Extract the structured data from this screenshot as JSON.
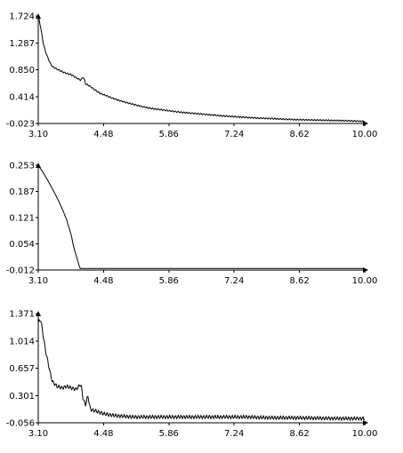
{
  "chart_data": [
    {
      "type": "line",
      "xlim": [
        3.1,
        10.0
      ],
      "ylim": [
        -0.023,
        1.724
      ],
      "x_ticks": [
        "3.10",
        "4.48",
        "5.86",
        "7.24",
        "8.62",
        "10.00"
      ],
      "y_ticks": [
        "1.724",
        "1.287",
        "0.850",
        "0.414",
        "-0.023"
      ],
      "grid": false,
      "series": [
        {
          "x": [
            3.1,
            3.15,
            3.2,
            3.25,
            3.3,
            3.35,
            3.4,
            3.5,
            3.6,
            3.7,
            3.8,
            3.9,
            4.0,
            4.05,
            4.1,
            4.2,
            4.3,
            4.4,
            4.5,
            4.7,
            4.9,
            5.1,
            5.3,
            5.5,
            5.8,
            6.1,
            6.4,
            6.7,
            7.0,
            7.3,
            7.6,
            7.9,
            8.2,
            8.5,
            8.8,
            9.1,
            9.4,
            9.7,
            10.0
          ],
          "y": [
            1.724,
            1.55,
            1.3,
            1.15,
            1.05,
            0.96,
            0.9,
            0.86,
            0.82,
            0.79,
            0.77,
            0.72,
            0.68,
            0.74,
            0.62,
            0.58,
            0.52,
            0.47,
            0.44,
            0.38,
            0.33,
            0.29,
            0.25,
            0.22,
            0.19,
            0.16,
            0.14,
            0.12,
            0.1,
            0.085,
            0.07,
            0.06,
            0.05,
            0.04,
            0.035,
            0.03,
            0.025,
            0.02,
            0.01
          ],
          "oscillation": 0.012
        }
      ]
    },
    {
      "type": "line",
      "xlim": [
        3.1,
        10.0
      ],
      "ylim": [
        -0.012,
        0.253
      ],
      "x_ticks": [
        "3.10",
        "4.48",
        "5.86",
        "7.24",
        "8.62",
        "10.00"
      ],
      "y_ticks": [
        "0.253",
        "0.187",
        "0.121",
        "0.054",
        "-0.012"
      ],
      "grid": false,
      "series": [
        {
          "x": [
            3.1,
            3.2,
            3.3,
            3.4,
            3.5,
            3.6,
            3.7,
            3.8,
            3.85,
            3.9,
            3.95,
            3.98,
            4.0,
            4.1,
            4.5,
            5.0,
            6.0,
            7.0,
            8.0,
            9.0,
            10.0
          ],
          "y": [
            0.253,
            0.235,
            0.215,
            0.193,
            0.17,
            0.145,
            0.115,
            0.075,
            0.045,
            0.025,
            0.005,
            -0.008,
            -0.008,
            -0.008,
            -0.008,
            -0.008,
            -0.008,
            -0.008,
            -0.008,
            -0.008,
            -0.008
          ],
          "oscillation": 0
        }
      ]
    },
    {
      "type": "line",
      "xlim": [
        3.1,
        10.0
      ],
      "ylim": [
        -0.056,
        1.371
      ],
      "x_ticks": [
        "3.10",
        "4.48",
        "5.86",
        "7.24",
        "8.62",
        "10.00"
      ],
      "y_ticks": [
        "1.371",
        "1.014",
        "0.657",
        "0.301",
        "-0.056"
      ],
      "grid": false,
      "series": [
        {
          "x": [
            3.1,
            3.15,
            3.2,
            3.25,
            3.3,
            3.35,
            3.4,
            3.5,
            3.6,
            3.7,
            3.8,
            3.9,
            4.0,
            4.05,
            4.1,
            4.15,
            4.2,
            4.3,
            4.4,
            4.5,
            4.7,
            4.9,
            5.1,
            5.5,
            6.0,
            6.5,
            7.0,
            7.5,
            8.0,
            8.5,
            9.0,
            9.5,
            10.0
          ],
          "y": [
            1.25,
            1.3,
            1.1,
            0.9,
            0.75,
            0.6,
            0.48,
            0.42,
            0.4,
            0.42,
            0.4,
            0.38,
            0.45,
            0.25,
            0.18,
            0.3,
            0.12,
            0.1,
            0.08,
            0.06,
            0.04,
            0.03,
            0.02,
            0.02,
            0.02,
            0.02,
            0.02,
            0.02,
            0.01,
            0.01,
            0.005,
            0.0,
            0.0
          ],
          "oscillation": 0.025
        }
      ]
    }
  ]
}
